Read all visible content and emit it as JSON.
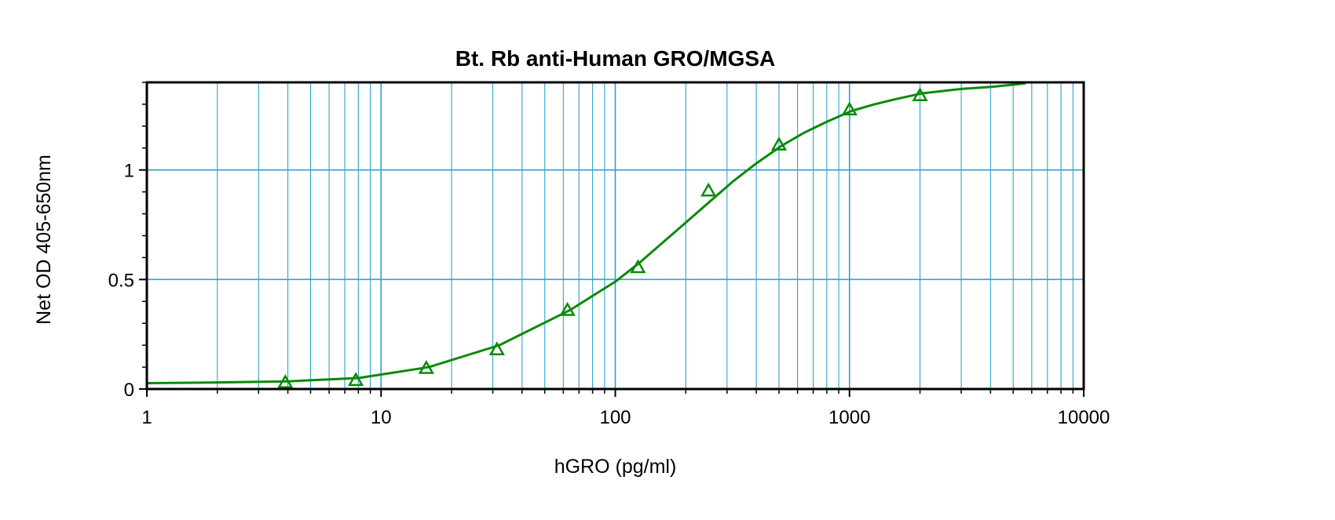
{
  "chart_data": {
    "type": "scatter",
    "title": "Bt. Rb anti-Human GRO/MGSA",
    "xlabel": "hGRO (pg/ml)",
    "ylabel": "Net OD 405-650nm",
    "x_scale": "log",
    "xlim": [
      1,
      10000
    ],
    "ylim": [
      0,
      1.4
    ],
    "x_ticks": [
      {
        "value": 1,
        "label": "1"
      },
      {
        "value": 10,
        "label": "10"
      },
      {
        "value": 100,
        "label": "100"
      },
      {
        "value": 1000,
        "label": "1000"
      },
      {
        "value": 10000,
        "label": "10000"
      }
    ],
    "y_ticks": [
      {
        "value": 0,
        "label": "0"
      },
      {
        "value": 0.5,
        "label": "0.5"
      },
      {
        "value": 1,
        "label": "1"
      }
    ],
    "grid": true,
    "colors": {
      "series": "#0a8a0a",
      "grid": "#2aa6cc",
      "axis": "#000000"
    },
    "marker": "triangle",
    "series": [
      {
        "x": [
          3.9,
          7.8,
          15.6,
          31.25,
          62.5,
          125,
          250,
          500,
          1000,
          2000
        ],
        "y": [
          0.03,
          0.04,
          0.095,
          0.18,
          0.36,
          0.555,
          0.905,
          1.115,
          1.275,
          1.34
        ]
      }
    ],
    "fit_curve": {
      "x": [
        1,
        2,
        4,
        8,
        16,
        32,
        64,
        100,
        128,
        160,
        200,
        256,
        320,
        400,
        512,
        640,
        800,
        1024,
        1280,
        1600,
        2048,
        3000,
        4096,
        5600
      ],
      "y": [
        0.027,
        0.03,
        0.035,
        0.05,
        0.1,
        0.2,
        0.36,
        0.49,
        0.58,
        0.67,
        0.76,
        0.86,
        0.95,
        1.03,
        1.11,
        1.17,
        1.22,
        1.27,
        1.3,
        1.325,
        1.35,
        1.37,
        1.38,
        1.395
      ]
    }
  }
}
